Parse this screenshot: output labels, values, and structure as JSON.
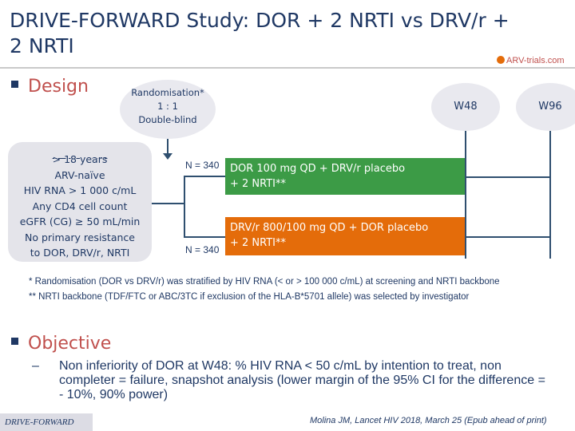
{
  "title": "DRIVE-FORWARD Study: DOR + 2 NRTI vs DRV/r + 2 NRTI",
  "logo": "ARV-trials.com",
  "design": {
    "heading": "Design",
    "randomisation": [
      "Randomisation*",
      "1 : 1",
      "Double-blind"
    ],
    "week_markers": [
      "W48",
      "W96"
    ],
    "criteria": [
      "> 18 years",
      "ARV-naïve",
      "HIV RNA > 1 000 c/mL",
      "Any CD4 cell count",
      "eGFR (CG) ≥ 50 mL/min",
      "No primary resistance",
      "to DOR, DRV/r, NRTI"
    ],
    "arms": [
      {
        "n": "N = 340",
        "line1": "DOR 100 mg QD + DRV/r placebo",
        "line2": "+ 2 NRTI**",
        "color": "#3c9b46"
      },
      {
        "n": "N = 340",
        "line1": "DRV/r 800/100 mg QD + DOR placebo",
        "line2": "+ 2 NRTI**",
        "color": "#e46c0a"
      }
    ],
    "footnotes": [
      "* Randomisation (DOR vs DRV/r) was stratified by HIV RNA (< or > 100 000 c/mL) at screening and NRTI backbone",
      "** NRTI backbone (TDF/FTC or ABC/3TC if exclusion of the HLA-B*5701 allele) was selected by investigator"
    ]
  },
  "objective": {
    "heading": "Objective",
    "dash": "–",
    "text": "Non inferiority of DOR at W48: % HIV RNA < 50 c/mL by intention to treat, non completer = failure, snapshot analysis (lower margin of the 95% CI for the difference = - 10%, 90% power)"
  },
  "footer": {
    "study": "DRIVE-FORWARD",
    "reference": "Molina JM, Lancet HIV 2018, March 25 (Epub ahead of print)"
  }
}
